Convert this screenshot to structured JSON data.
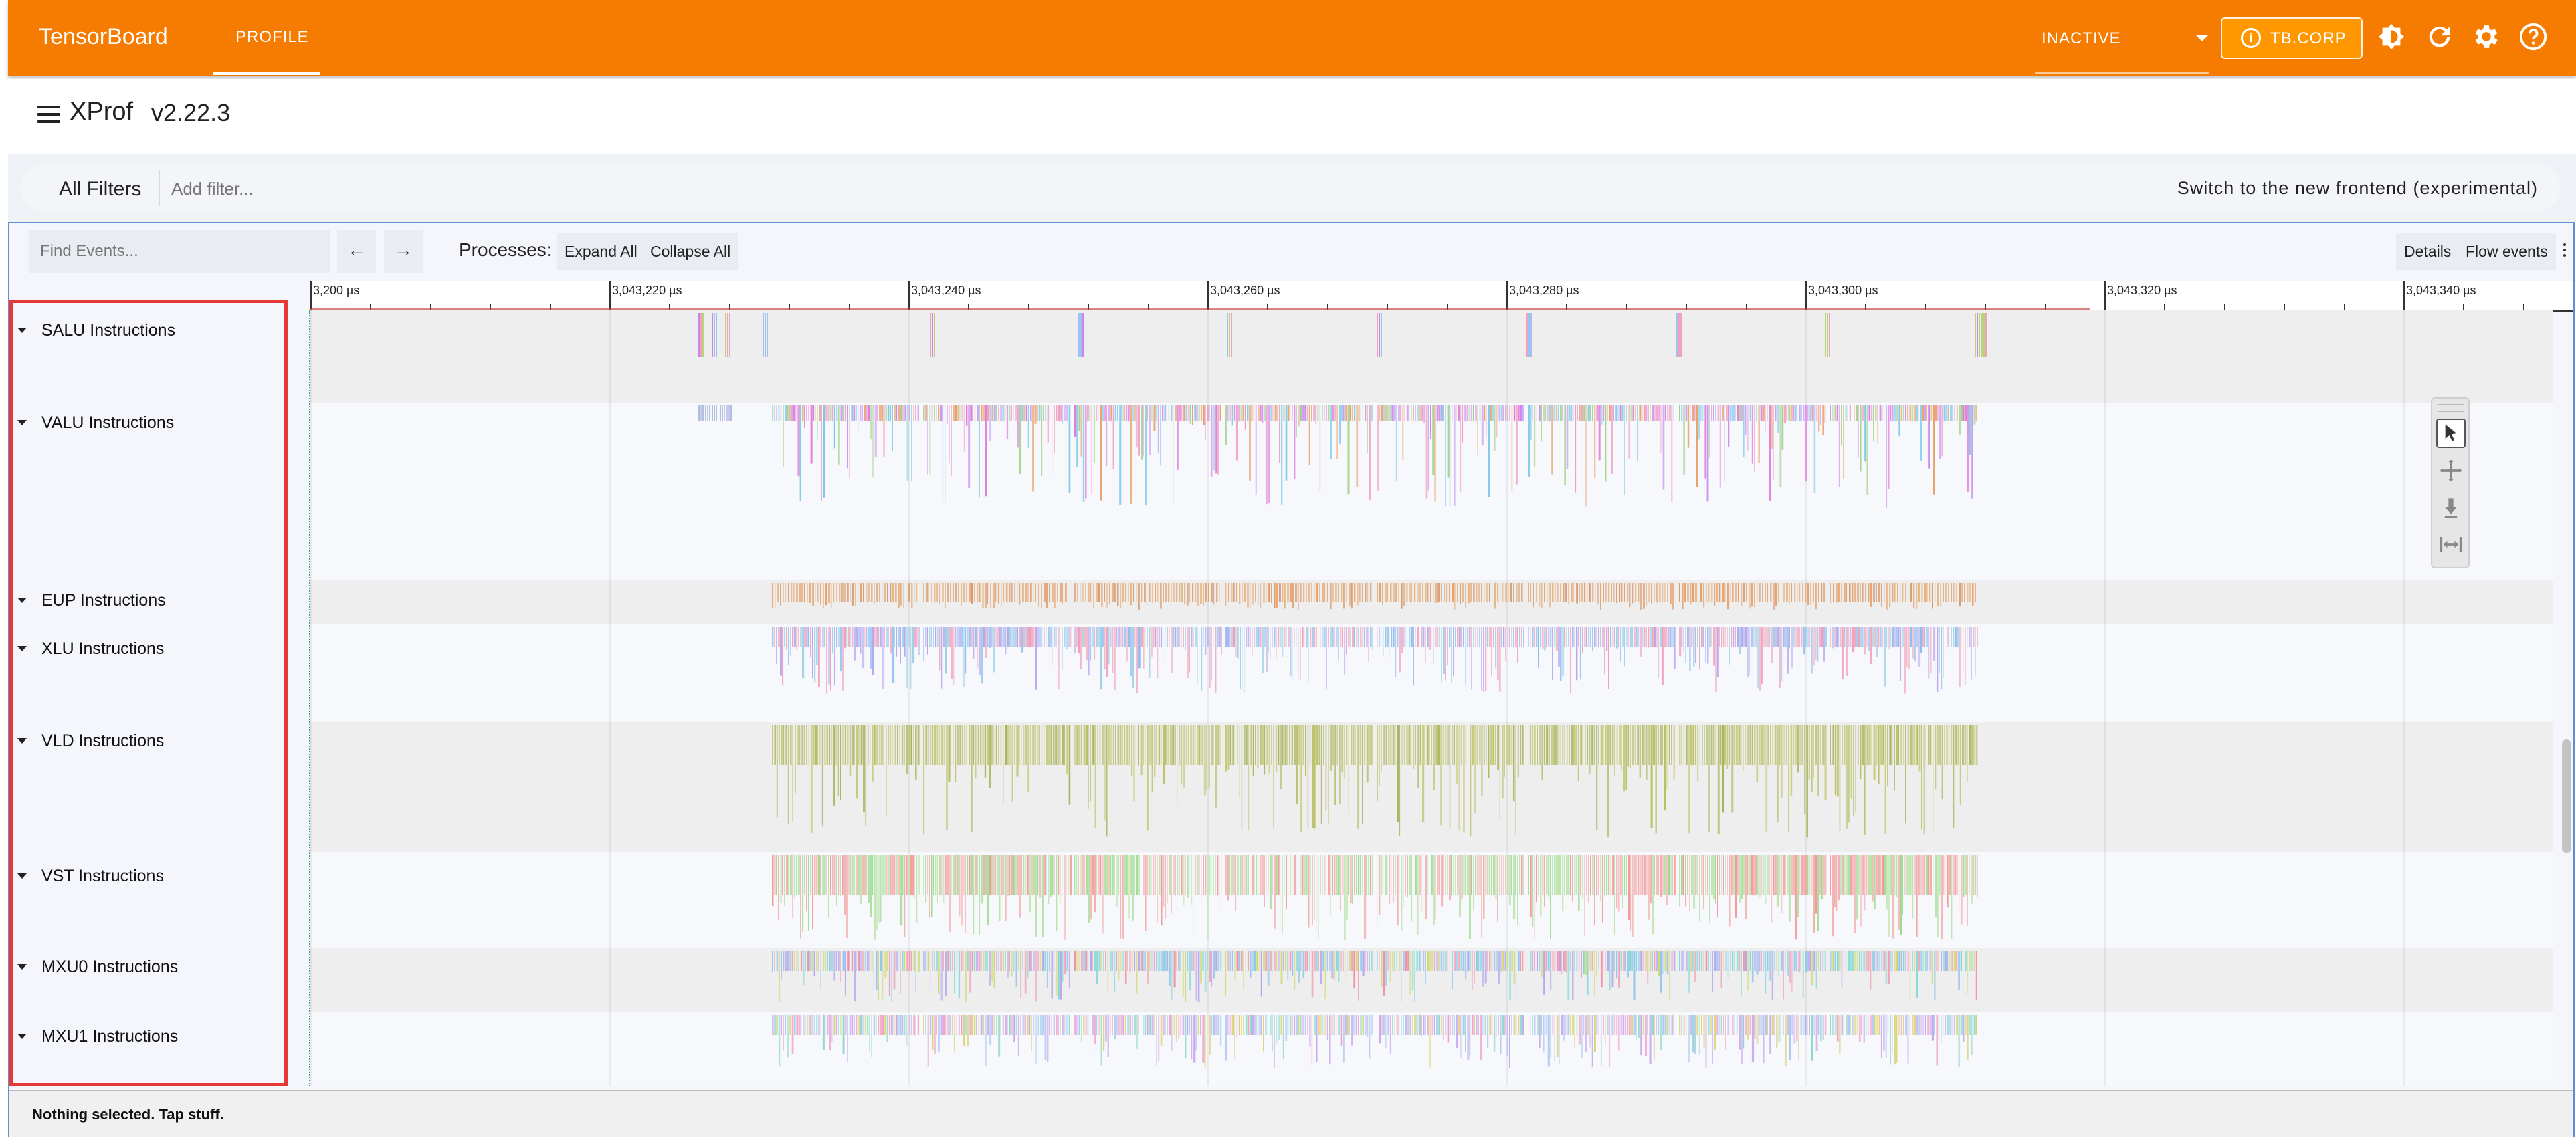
{
  "topbar": {
    "brand": "TensorBoard",
    "tabs": [
      {
        "label": "PROFILE",
        "active": true
      }
    ],
    "status_select": "INACTIVE",
    "tb_corp_label": "TB.CORP",
    "accent_color": "#f57c00"
  },
  "header": {
    "title": "XProf",
    "version": "v2.22.3"
  },
  "filters": {
    "all_filters_label": "All Filters",
    "placeholder": "Add filter...",
    "switch_label": "Switch to the new frontend (experimental)"
  },
  "viewer": {
    "find_placeholder": "Find Events...",
    "prev_label": "←",
    "next_label": "→",
    "processes_label": "Processes:",
    "expand_all": "Expand All",
    "collapse_all": "Collapse All",
    "details": "Details",
    "flow_events": "Flow events",
    "ruler_ticks": [
      "3,200 µs",
      "3,043,220 µs",
      "3,043,240 µs",
      "3,043,260 µs",
      "3,043,280 µs",
      "3,043,300 µs",
      "3,043,320 µs",
      "3,043,340 µs"
    ],
    "tracks": [
      {
        "label": "SALU Instructions"
      },
      {
        "label": "VALU Instructions"
      },
      {
        "label": "EUP Instructions"
      },
      {
        "label": "XLU Instructions"
      },
      {
        "label": "VLD Instructions"
      },
      {
        "label": "VST Instructions"
      },
      {
        "label": "MXU0 Instructions"
      },
      {
        "label": "MXU1 Instructions"
      }
    ],
    "status_text": "Nothing selected. Tap stuff.",
    "highlight_color": "#e53935"
  }
}
